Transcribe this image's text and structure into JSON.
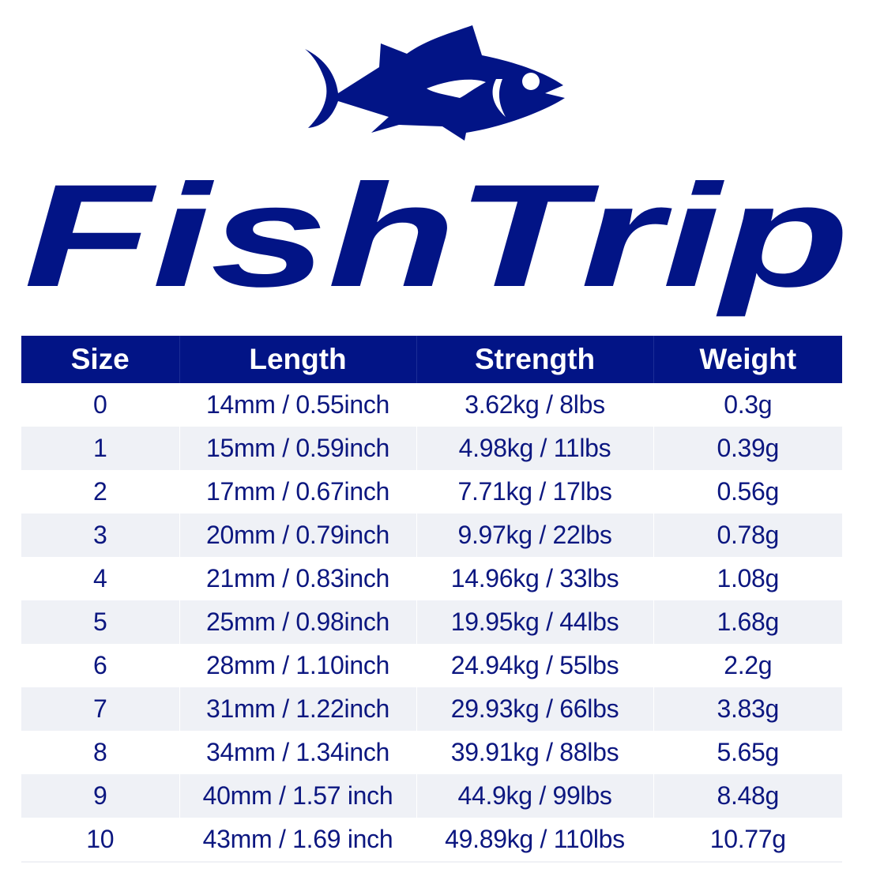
{
  "brand": {
    "name": "FishTrip",
    "color": "#021486",
    "icon": "tuna-fish-icon"
  },
  "table": {
    "headers": [
      "Size",
      "Length",
      "Strength",
      "Weight"
    ],
    "rows": [
      [
        "0",
        "14mm / 0.55inch",
        "3.62kg / 8lbs",
        "0.3g"
      ],
      [
        "1",
        "15mm / 0.59inch",
        "4.98kg / 11lbs",
        "0.39g"
      ],
      [
        "2",
        "17mm / 0.67inch",
        "7.71kg / 17lbs",
        "0.56g"
      ],
      [
        "3",
        "20mm / 0.79inch",
        "9.97kg / 22lbs",
        "0.78g"
      ],
      [
        "4",
        "21mm / 0.83inch",
        "14.96kg / 33lbs",
        "1.08g"
      ],
      [
        "5",
        "25mm / 0.98inch",
        "19.95kg / 44lbs",
        "1.68g"
      ],
      [
        "6",
        "28mm / 1.10inch",
        "24.94kg / 55lbs",
        "2.2g"
      ],
      [
        "7",
        "31mm / 1.22inch",
        "29.93kg / 66lbs",
        "3.83g"
      ],
      [
        "8",
        "34mm / 1.34inch",
        "39.91kg / 88lbs",
        "5.65g"
      ],
      [
        "9",
        "40mm / 1.57 inch",
        "44.9kg / 99lbs",
        "8.48g"
      ],
      [
        "10",
        "43mm / 1.69 inch",
        "49.89kg / 110lbs",
        "10.77g"
      ]
    ]
  }
}
